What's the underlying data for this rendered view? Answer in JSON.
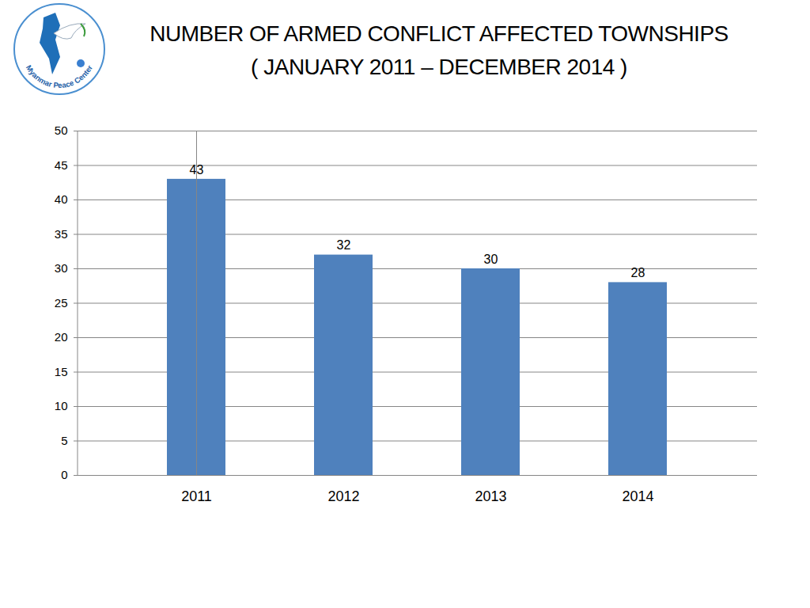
{
  "logo": "Myanmar Peace Center",
  "chart_data": {
    "type": "bar",
    "title": "NUMBER OF ARMED CONFLICT AFFECTED TOWNSHIPS",
    "subtitle": "( JANUARY 2011 – DECEMBER 2014 )",
    "categories": [
      "2011",
      "2012",
      "2013",
      "2014"
    ],
    "values": [
      43,
      32,
      30,
      28
    ],
    "color": "#4f81bd",
    "ylim": [
      0,
      50
    ],
    "yticks": [
      0,
      5,
      10,
      15,
      20,
      25,
      30,
      35,
      40,
      45,
      50
    ],
    "grid": true,
    "data_labels": true
  }
}
